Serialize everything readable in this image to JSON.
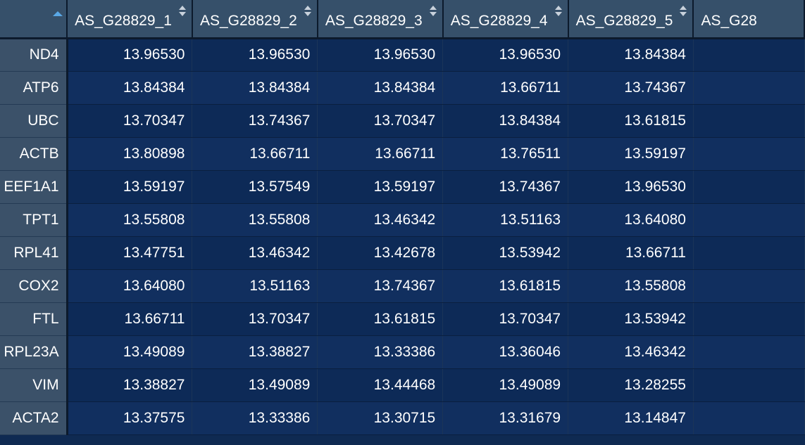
{
  "table": {
    "columns": [
      "AS_G28829_1",
      "AS_G28829_2",
      "AS_G28829_3",
      "AS_G28829_4",
      "AS_G28829_5",
      "AS_G28"
    ],
    "rows": [
      {
        "gene": "ND4",
        "values": [
          "13.96530",
          "13.96530",
          "13.96530",
          "13.96530",
          "13.84384",
          ""
        ]
      },
      {
        "gene": "ATP6",
        "values": [
          "13.84384",
          "13.84384",
          "13.84384",
          "13.66711",
          "13.74367",
          ""
        ]
      },
      {
        "gene": "UBC",
        "values": [
          "13.70347",
          "13.74367",
          "13.70347",
          "13.84384",
          "13.61815",
          ""
        ]
      },
      {
        "gene": "ACTB",
        "values": [
          "13.80898",
          "13.66711",
          "13.66711",
          "13.76511",
          "13.59197",
          ""
        ]
      },
      {
        "gene": "EEF1A1",
        "values": [
          "13.59197",
          "13.57549",
          "13.59197",
          "13.74367",
          "13.96530",
          ""
        ]
      },
      {
        "gene": "TPT1",
        "values": [
          "13.55808",
          "13.55808",
          "13.46342",
          "13.51163",
          "13.64080",
          ""
        ]
      },
      {
        "gene": "RPL41",
        "values": [
          "13.47751",
          "13.46342",
          "13.42678",
          "13.53942",
          "13.66711",
          ""
        ]
      },
      {
        "gene": "COX2",
        "values": [
          "13.64080",
          "13.51163",
          "13.74367",
          "13.61815",
          "13.55808",
          ""
        ]
      },
      {
        "gene": "FTL",
        "values": [
          "13.66711",
          "13.70347",
          "13.61815",
          "13.70347",
          "13.53942",
          ""
        ]
      },
      {
        "gene": "RPL23A",
        "values": [
          "13.49089",
          "13.38827",
          "13.33386",
          "13.36046",
          "13.46342",
          ""
        ]
      },
      {
        "gene": "VIM",
        "values": [
          "13.38827",
          "13.49089",
          "13.44468",
          "13.49089",
          "13.28255",
          ""
        ]
      },
      {
        "gene": "ACTA2",
        "values": [
          "13.37575",
          "13.33386",
          "13.30715",
          "13.31679",
          "13.14847",
          ""
        ]
      }
    ]
  },
  "icons": {
    "corner_sort": "sort-ascending-icon",
    "column_sort": "sort-both-icon"
  },
  "colors": {
    "header_bg": "#36506a",
    "rowname_bg": "#3b5169",
    "cell_bg_odd": "#0d2a57",
    "cell_bg_even": "#112f5f",
    "sort_accent": "#5aa8e6"
  }
}
